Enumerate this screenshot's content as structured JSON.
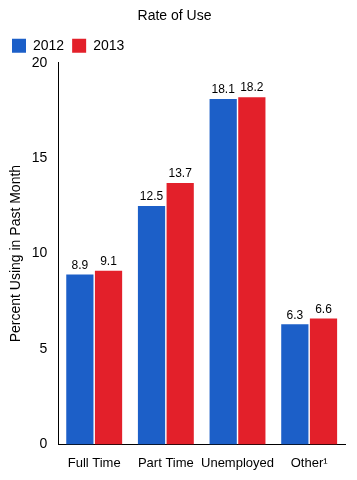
{
  "chart_data": {
    "type": "bar",
    "title": "Rate of Use",
    "y_label": "Percent Using in Past Month",
    "categories": [
      "Full Time",
      "Part Time",
      "Unemployed",
      "Other¹"
    ],
    "series": [
      {
        "name": "2012",
        "color": "#1c5fc8",
        "values": [
          8.9,
          12.5,
          18.1,
          6.3
        ]
      },
      {
        "name": "2013",
        "color": "#e3202a",
        "values": [
          9.1,
          13.7,
          18.2,
          6.6
        ]
      }
    ],
    "ylim": [
      0,
      20
    ],
    "yticks": [
      0,
      5,
      10,
      15,
      20
    ],
    "grid": false,
    "legend": "top-left",
    "data_labels": true
  }
}
